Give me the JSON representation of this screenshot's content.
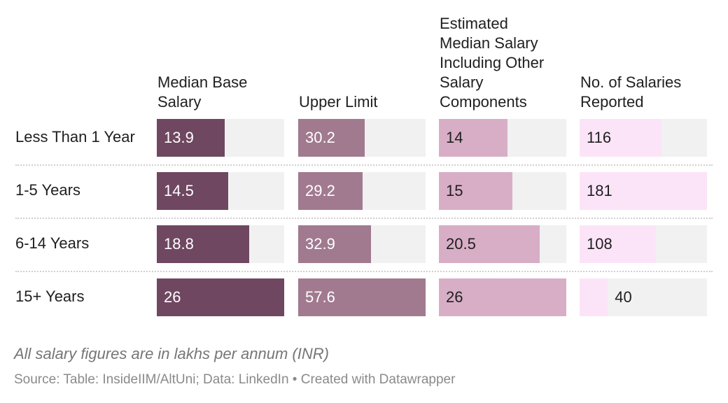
{
  "chart_data": {
    "type": "table",
    "columns": [
      {
        "key": "median_base",
        "header": "Median Base\nSalary",
        "color": "#6f4760",
        "max": 26
      },
      {
        "key": "upper_limit",
        "header": "Upper Limit",
        "color": "#a17a90",
        "max": 57.6
      },
      {
        "key": "estimated_median",
        "header": "Estimated\nMedian Salary\nIncluding Other\nSalary\nComponents",
        "color": "#d8aec7",
        "max": 26
      },
      {
        "key": "num_salaries",
        "header": "No. of Salaries\nReported",
        "color": "#fce4f8",
        "max": 181
      }
    ],
    "rows": [
      {
        "label": "Less Than 1 Year",
        "values": [
          "13.9",
          "30.2",
          "14",
          "116"
        ]
      },
      {
        "label": "1-5 Years",
        "values": [
          "14.5",
          "29.2",
          "15",
          "181"
        ]
      },
      {
        "label": "6-14 Years",
        "values": [
          "18.8",
          "32.9",
          "20.5",
          "108"
        ]
      },
      {
        "label": "15+ Years",
        "values": [
          "26",
          "57.6",
          "26",
          "40"
        ]
      }
    ],
    "note": "All salary figures are in lakhs per annum (INR)",
    "source": "Source: Table: InsideIIM/AltUni; Data: LinkedIn • Created with Datawrapper"
  }
}
